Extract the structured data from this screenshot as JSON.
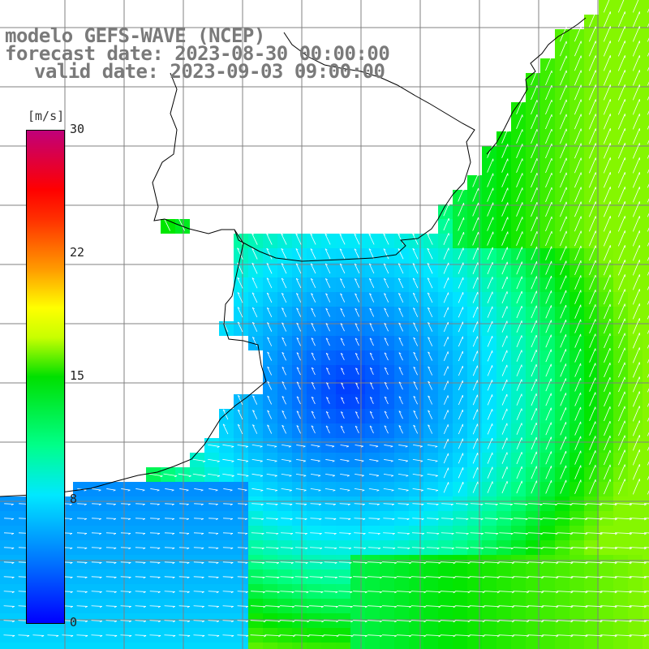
{
  "title": {
    "line1": "modelo GEFS-WAVE (NCEP)",
    "line2": "forecast date: 2023-08-30 00:00:00",
    "line3": "valid date: 2023-09-03 09:00:00"
  },
  "colorbar": {
    "unit": "[m/s]",
    "ticks": [
      "30",
      "22",
      "15",
      "8",
      "0"
    ],
    "tick_values": [
      30,
      22,
      15,
      8,
      0
    ],
    "range": [
      0,
      30
    ],
    "colors": [
      "#0000ff",
      "#0070ff",
      "#00e8ff",
      "#00ff8a",
      "#00e000",
      "#c8ff00",
      "#ffff00",
      "#ff9900",
      "#ff3000",
      "#ff0000",
      "#c0007a"
    ]
  },
  "map": {
    "variable": "wind speed and direction",
    "land_color": "#ffffff",
    "grid_color": "#808080",
    "coastline_color": "#000000",
    "arrow_color": "#ffffff"
  }
}
